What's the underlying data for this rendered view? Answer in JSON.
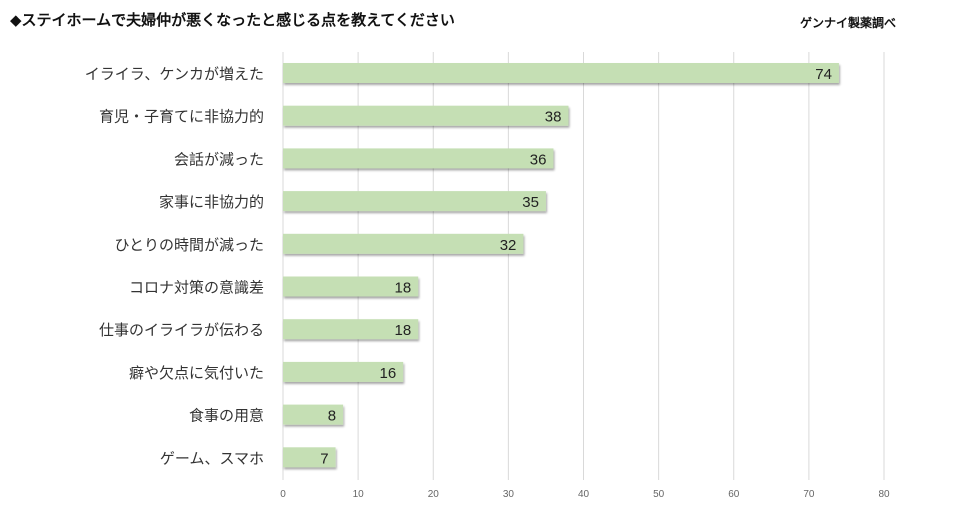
{
  "chart_data": {
    "type": "bar",
    "orientation": "horizontal",
    "title": "◆ステイホームで夫婦仲が悪くなったと感じる点を教えてください",
    "source": "ゲンナイ製薬調べ",
    "categories": [
      "イライラ、ケンカが増えた",
      "育児・子育てに非協力的",
      "会話が減った",
      "家事に非協力的",
      "ひとりの時間が減った",
      "コロナ対策の意識差",
      "仕事のイライラが伝わる",
      "癖や欠点に気付いた",
      "食事の用意",
      "ゲーム、スマホ"
    ],
    "values": [
      74,
      38,
      36,
      35,
      32,
      18,
      18,
      16,
      8,
      7
    ],
    "xlim": [
      0,
      80
    ],
    "xticks": [
      0,
      10,
      20,
      30,
      40,
      50,
      60,
      70,
      80
    ],
    "grid": true,
    "bar_color": "#c5dfb4",
    "xlabel": "",
    "ylabel": ""
  }
}
